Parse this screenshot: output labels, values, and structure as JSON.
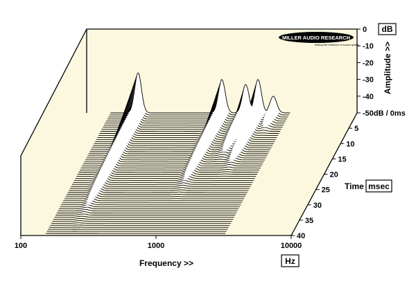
{
  "chart_data": {
    "type": "waterfall",
    "brand": "MILLER AUDIO RESEARCH",
    "brand_tagline": "testing the measure of sound quality",
    "x_axis": {
      "label": "Frequency >>",
      "unit": "Hz",
      "scale": "log",
      "range": [
        100,
        10000
      ],
      "ticks": [
        "100",
        "1000",
        "10000"
      ]
    },
    "y_axis": {
      "label": "Amplitude >>",
      "unit": "dB",
      "range": [
        -50,
        0
      ],
      "ticks": [
        "0",
        "-10",
        "-20",
        "-30",
        "-40",
        "-50dB / 0ms"
      ]
    },
    "z_axis": {
      "label": "Time",
      "unit": "msec",
      "range": [
        0,
        40
      ],
      "ticks": [
        "5",
        "10",
        "15",
        "20",
        "25",
        "30",
        "35",
        "40"
      ]
    },
    "resonances": [
      {
        "freq_hz": 240,
        "peak_db": -26,
        "decay_ms": 40
      },
      {
        "freq_hz": 1000,
        "peak_db": -30,
        "decay_ms": 30
      },
      {
        "freq_hz": 1500,
        "peak_db": -33,
        "decay_ms": 18
      },
      {
        "freq_hz": 1850,
        "peak_db": -30,
        "decay_ms": 22
      },
      {
        "freq_hz": 2400,
        "peak_db": -40,
        "decay_ms": 8
      }
    ],
    "colors": {
      "panel": "#fbf8df",
      "lines": "#000000"
    }
  }
}
